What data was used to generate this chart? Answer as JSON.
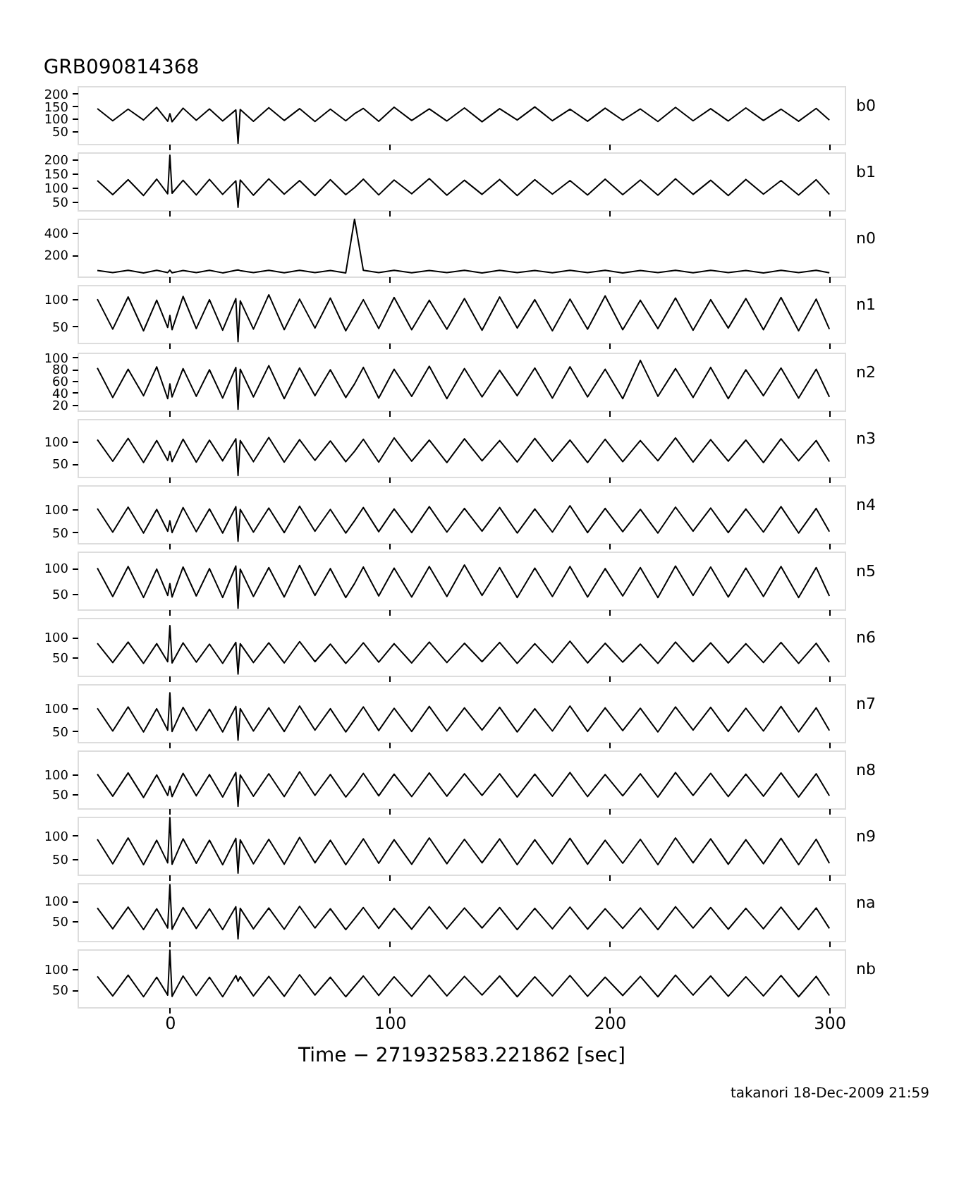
{
  "chart_data": [
    {
      "type": "line",
      "title": "GRB090814368",
      "tick_labels": "y",
      "xlim": [
        -42,
        307
      ],
      "xticks": [
        0,
        100,
        200,
        300
      ],
      "ylim": [
        0,
        230
      ],
      "yticks": [
        50,
        100,
        150,
        200
      ],
      "x": [
        -33,
        -26,
        -19,
        -12,
        -6,
        -1,
        0,
        1,
        6,
        12,
        18,
        24,
        30,
        31,
        32,
        38,
        45,
        52,
        59,
        66,
        73,
        80,
        84,
        88,
        95,
        102,
        110,
        118,
        126,
        134,
        142,
        150,
        158,
        166,
        174,
        182,
        190,
        198,
        206,
        214,
        222,
        230,
        238,
        246,
        254,
        262,
        270,
        278,
        286,
        294,
        300
      ],
      "series": [
        {
          "name": "b0",
          "color": "#000000",
          "values": [
            140,
            92,
            138,
            95,
            145,
            90,
            120,
            88,
            142,
            94,
            139,
            91,
            135,
            2,
            137,
            90,
            144,
            93,
            140,
            89,
            138,
            92,
            120,
            141,
            90,
            146,
            93,
            139,
            91,
            143,
            88,
            140,
            95,
            147,
            92,
            138,
            90,
            142,
            94,
            139,
            89,
            145,
            92,
            140,
            91,
            143,
            93,
            138,
            90,
            141,
            95
          ]
        }
      ]
    },
    {
      "type": "line",
      "tick_labels": "y",
      "xlim": [
        -42,
        307
      ],
      "xticks": [
        0,
        100,
        200,
        300
      ],
      "ylim": [
        20,
        225
      ],
      "yticks": [
        50,
        100,
        150,
        200
      ],
      "x": [
        -33,
        -26,
        -19,
        -12,
        -6,
        -1,
        0,
        1,
        6,
        12,
        18,
        24,
        30,
        31,
        32,
        38,
        45,
        52,
        59,
        66,
        73,
        80,
        84,
        88,
        95,
        102,
        110,
        118,
        126,
        134,
        142,
        150,
        158,
        166,
        174,
        182,
        190,
        198,
        206,
        214,
        222,
        230,
        238,
        246,
        254,
        262,
        270,
        278,
        286,
        294,
        300
      ],
      "series": [
        {
          "name": "b1",
          "color": "#000000",
          "values": [
            125,
            75,
            128,
            72,
            130,
            78,
            215,
            80,
            126,
            74,
            129,
            76,
            124,
            30,
            127,
            73,
            131,
            77,
            125,
            72,
            128,
            75,
            100,
            130,
            74,
            127,
            78,
            132,
            73,
            126,
            76,
            129,
            72,
            128,
            77,
            125,
            74,
            130,
            75,
            127,
            73,
            131,
            76,
            126,
            72,
            129,
            77,
            125,
            74,
            128,
            76
          ]
        }
      ]
    },
    {
      "type": "line",
      "tick_labels": "y",
      "xlim": [
        -42,
        307
      ],
      "xticks": [
        0,
        100,
        200,
        300
      ],
      "ylim": [
        0,
        530
      ],
      "yticks": [
        200,
        400
      ],
      "x": [
        -33,
        -26,
        -19,
        -12,
        -6,
        -1,
        0,
        1,
        6,
        12,
        18,
        24,
        30,
        31,
        32,
        38,
        45,
        52,
        59,
        66,
        73,
        80,
        84,
        88,
        95,
        102,
        110,
        118,
        126,
        134,
        142,
        150,
        158,
        166,
        174,
        182,
        190,
        198,
        206,
        214,
        222,
        230,
        238,
        246,
        254,
        262,
        270,
        278,
        286,
        294,
        300
      ],
      "series": [
        {
          "name": "n0",
          "color": "#000000",
          "values": [
            55,
            35,
            57,
            33,
            56,
            36,
            58,
            34,
            55,
            35,
            57,
            33,
            56,
            60,
            54,
            36,
            57,
            34,
            56,
            35,
            55,
            33,
            525,
            56,
            35,
            57,
            34,
            55,
            36,
            56,
            33,
            57,
            35,
            55,
            34,
            56,
            36,
            57,
            33,
            55,
            35,
            56,
            34,
            57,
            36,
            55,
            33,
            56,
            35,
            57,
            34
          ]
        }
      ]
    },
    {
      "type": "line",
      "tick_labels": "y",
      "xlim": [
        -42,
        307
      ],
      "xticks": [
        0,
        100,
        200,
        300
      ],
      "ylim": [
        20,
        126
      ],
      "yticks": [
        50,
        100
      ],
      "x": [
        -33,
        -26,
        -19,
        -12,
        -6,
        -1,
        0,
        1,
        6,
        12,
        18,
        24,
        30,
        31,
        32,
        38,
        45,
        52,
        59,
        66,
        73,
        80,
        84,
        88,
        95,
        102,
        110,
        118,
        126,
        134,
        142,
        150,
        158,
        166,
        174,
        182,
        190,
        198,
        206,
        214,
        222,
        230,
        238,
        246,
        254,
        262,
        270,
        278,
        286,
        294,
        300
      ],
      "series": [
        {
          "name": "n1",
          "color": "#000000",
          "values": [
            100,
            45,
            104,
            42,
            98,
            48,
            70,
            44,
            105,
            46,
            99,
            43,
            101,
            22,
            97,
            45,
            108,
            44,
            100,
            47,
            102,
            42,
            70,
            99,
            46,
            103,
            44,
            98,
            45,
            101,
            43,
            104,
            47,
            99,
            42,
            100,
            45,
            106,
            44,
            98,
            46,
            102,
            43,
            99,
            47,
            101,
            44,
            103,
            42,
            100,
            45
          ]
        }
      ]
    },
    {
      "type": "line",
      "tick_labels": "y",
      "xlim": [
        -42,
        307
      ],
      "xticks": [
        0,
        100,
        200,
        300
      ],
      "ylim": [
        10,
        108
      ],
      "yticks": [
        20,
        40,
        60,
        80,
        100
      ],
      "x": [
        -33,
        -26,
        -19,
        -12,
        -6,
        -1,
        0,
        1,
        6,
        12,
        18,
        24,
        30,
        31,
        32,
        38,
        45,
        52,
        59,
        66,
        73,
        80,
        84,
        88,
        95,
        102,
        110,
        118,
        126,
        134,
        142,
        150,
        158,
        166,
        174,
        182,
        190,
        198,
        206,
        214,
        222,
        230,
        238,
        246,
        254,
        262,
        270,
        278,
        286,
        294,
        300
      ],
      "series": [
        {
          "name": "n2",
          "color": "#000000",
          "values": [
            82,
            32,
            80,
            35,
            84,
            30,
            55,
            33,
            81,
            34,
            79,
            31,
            83,
            12,
            80,
            33,
            86,
            30,
            82,
            35,
            79,
            32,
            55,
            83,
            31,
            80,
            34,
            85,
            30,
            81,
            33,
            78,
            35,
            82,
            31,
            84,
            33,
            80,
            30,
            95,
            34,
            81,
            32,
            83,
            30,
            79,
            35,
            82,
            31,
            80,
            33
          ]
        }
      ]
    },
    {
      "type": "line",
      "tick_labels": "y",
      "xlim": [
        -42,
        307
      ],
      "xticks": [
        0,
        100,
        200,
        300
      ],
      "ylim": [
        19,
        153
      ],
      "yticks": [
        50,
        100
      ],
      "x": [
        -33,
        -26,
        -19,
        -12,
        -6,
        -1,
        0,
        1,
        6,
        12,
        18,
        24,
        30,
        31,
        32,
        38,
        45,
        52,
        59,
        66,
        73,
        80,
        84,
        88,
        95,
        102,
        110,
        118,
        126,
        134,
        142,
        150,
        158,
        166,
        174,
        182,
        190,
        198,
        206,
        214,
        222,
        230,
        238,
        246,
        254,
        262,
        270,
        278,
        286,
        294,
        300
      ],
      "series": [
        {
          "name": "n3",
          "color": "#000000",
          "values": [
            105,
            55,
            108,
            52,
            103,
            57,
            78,
            54,
            106,
            53,
            104,
            56,
            107,
            22,
            103,
            54,
            110,
            53,
            105,
            57,
            102,
            54,
            78,
            106,
            53,
            109,
            55,
            104,
            52,
            107,
            56,
            103,
            53,
            108,
            55,
            104,
            52,
            106,
            54,
            103,
            56,
            109,
            53,
            105,
            55,
            104,
            52,
            107,
            56,
            103,
            54
          ]
        }
      ]
    },
    {
      "type": "line",
      "tick_labels": "y",
      "xlim": [
        -42,
        307
      ],
      "xticks": [
        0,
        100,
        200,
        300
      ],
      "ylim": [
        26,
        153
      ],
      "yticks": [
        50,
        100
      ],
      "x": [
        -33,
        -26,
        -19,
        -12,
        -6,
        -1,
        0,
        1,
        6,
        12,
        18,
        24,
        30,
        31,
        32,
        38,
        45,
        52,
        59,
        66,
        73,
        80,
        84,
        88,
        95,
        102,
        110,
        118,
        126,
        134,
        142,
        150,
        158,
        166,
        174,
        182,
        190,
        198,
        206,
        214,
        222,
        230,
        238,
        246,
        254,
        262,
        270,
        278,
        286,
        294,
        300
      ],
      "series": [
        {
          "name": "n4",
          "color": "#000000",
          "values": [
            102,
            50,
            105,
            48,
            100,
            52,
            75,
            49,
            104,
            51,
            101,
            48,
            106,
            30,
            100,
            50,
            103,
            49,
            107,
            52,
            100,
            48,
            75,
            104,
            51,
            101,
            49,
            106,
            50,
            102,
            52,
            104,
            48,
            101,
            50,
            108,
            49,
            102,
            51,
            100,
            48,
            105,
            52,
            103,
            49,
            101,
            50,
            106,
            48,
            102,
            51
          ]
        }
      ]
    },
    {
      "type": "line",
      "tick_labels": "y",
      "xlim": [
        -42,
        307
      ],
      "xticks": [
        0,
        100,
        200,
        300
      ],
      "ylim": [
        20,
        132
      ],
      "yticks": [
        50,
        100
      ],
      "x": [
        -33,
        -26,
        -19,
        -12,
        -6,
        -1,
        0,
        1,
        6,
        12,
        18,
        24,
        30,
        31,
        32,
        38,
        45,
        52,
        59,
        66,
        73,
        80,
        84,
        88,
        95,
        102,
        110,
        118,
        126,
        134,
        142,
        150,
        158,
        166,
        174,
        182,
        190,
        198,
        206,
        214,
        222,
        230,
        238,
        246,
        254,
        262,
        270,
        278,
        286,
        294,
        300
      ],
      "series": [
        {
          "name": "n5",
          "color": "#000000",
          "values": [
            100,
            45,
            103,
            43,
            98,
            47,
            70,
            44,
            102,
            46,
            99,
            43,
            104,
            22,
            98,
            45,
            101,
            44,
            105,
            47,
            99,
            43,
            70,
            102,
            46,
            100,
            44,
            103,
            45,
            106,
            47,
            101,
            43,
            100,
            45,
            103,
            44,
            99,
            46,
            101,
            43,
            104,
            47,
            102,
            44,
            100,
            45,
            103,
            43,
            101,
            46
          ]
        }
      ]
    },
    {
      "type": "line",
      "tick_labels": "y",
      "xlim": [
        -42,
        307
      ],
      "xticks": [
        0,
        100,
        200,
        300
      ],
      "ylim": [
        6,
        147
      ],
      "yticks": [
        50,
        100
      ],
      "x": [
        -33,
        -26,
        -19,
        -12,
        -6,
        -1,
        0,
        1,
        6,
        12,
        18,
        24,
        30,
        31,
        32,
        38,
        45,
        52,
        59,
        66,
        73,
        80,
        84,
        88,
        95,
        102,
        110,
        118,
        126,
        134,
        142,
        150,
        158,
        166,
        174,
        182,
        190,
        198,
        206,
        214,
        222,
        230,
        238,
        246,
        254,
        262,
        270,
        278,
        286,
        294,
        300
      ],
      "series": [
        {
          "name": "n6",
          "color": "#000000",
          "values": [
            85,
            38,
            88,
            36,
            84,
            40,
            128,
            37,
            86,
            39,
            83,
            36,
            87,
            10,
            84,
            38,
            86,
            37,
            89,
            40,
            83,
            36,
            60,
            86,
            39,
            84,
            37,
            88,
            38,
            85,
            40,
            87,
            36,
            84,
            38,
            90,
            37,
            85,
            39,
            83,
            36,
            88,
            40,
            86,
            37,
            84,
            38,
            87,
            36,
            85,
            39
          ]
        }
      ]
    },
    {
      "type": "line",
      "tick_labels": "y",
      "xlim": [
        -42,
        307
      ],
      "xticks": [
        0,
        100,
        200,
        300
      ],
      "ylim": [
        26,
        153
      ],
      "yticks": [
        50,
        100
      ],
      "x": [
        -33,
        -26,
        -19,
        -12,
        -6,
        -1,
        0,
        1,
        6,
        12,
        18,
        24,
        30,
        31,
        32,
        38,
        45,
        52,
        59,
        66,
        73,
        80,
        84,
        88,
        95,
        102,
        110,
        118,
        126,
        134,
        142,
        150,
        158,
        166,
        174,
        182,
        190,
        198,
        206,
        214,
        222,
        230,
        238,
        246,
        254,
        262,
        270,
        278,
        286,
        294,
        300
      ],
      "series": [
        {
          "name": "n7",
          "color": "#000000",
          "values": [
            100,
            50,
            103,
            48,
            99,
            52,
            134,
            49,
            102,
            51,
            98,
            48,
            104,
            30,
            99,
            50,
            101,
            49,
            105,
            52,
            99,
            48,
            75,
            103,
            51,
            100,
            49,
            104,
            50,
            101,
            52,
            102,
            48,
            99,
            50,
            105,
            49,
            101,
            51,
            100,
            48,
            103,
            52,
            102,
            49,
            100,
            50,
            104,
            48,
            101,
            51
          ]
        }
      ]
    },
    {
      "type": "line",
      "tick_labels": "y",
      "xlim": [
        -42,
        307
      ],
      "xticks": [
        0,
        100,
        200,
        300
      ],
      "ylim": [
        15,
        159
      ],
      "yticks": [
        50,
        100
      ],
      "x": [
        -33,
        -26,
        -19,
        -12,
        -6,
        -1,
        0,
        1,
        6,
        12,
        18,
        24,
        30,
        31,
        32,
        38,
        45,
        52,
        59,
        66,
        73,
        80,
        84,
        88,
        95,
        102,
        110,
        118,
        126,
        134,
        142,
        150,
        158,
        166,
        174,
        182,
        190,
        198,
        206,
        214,
        222,
        230,
        238,
        246,
        254,
        262,
        270,
        278,
        286,
        294,
        300
      ],
      "series": [
        {
          "name": "n8",
          "color": "#000000",
          "values": [
            100,
            45,
            103,
            42,
            98,
            47,
            70,
            44,
            102,
            46,
            99,
            43,
            104,
            20,
            98,
            45,
            101,
            44,
            106,
            47,
            99,
            43,
            70,
            102,
            46,
            100,
            44,
            103,
            45,
            101,
            47,
            101,
            43,
            100,
            45,
            104,
            44,
            99,
            46,
            101,
            43,
            104,
            47,
            102,
            44,
            100,
            45,
            103,
            43,
            101,
            46
          ]
        }
      ]
    },
    {
      "type": "line",
      "tick_labels": "y",
      "xlim": [
        -42,
        307
      ],
      "xticks": [
        0,
        100,
        200,
        300
      ],
      "ylim": [
        17,
        140
      ],
      "yticks": [
        50,
        100
      ],
      "x": [
        -33,
        -26,
        -19,
        -12,
        -6,
        -1,
        0,
        1,
        6,
        12,
        18,
        24,
        30,
        31,
        32,
        38,
        45,
        52,
        59,
        66,
        73,
        80,
        84,
        88,
        95,
        102,
        110,
        118,
        126,
        134,
        142,
        150,
        158,
        166,
        174,
        182,
        190,
        198,
        206,
        214,
        222,
        230,
        238,
        246,
        254,
        262,
        270,
        278,
        286,
        294,
        300
      ],
      "series": [
        {
          "name": "n9",
          "color": "#000000",
          "values": [
            92,
            40,
            95,
            38,
            90,
            42,
            138,
            39,
            93,
            41,
            90,
            38,
            94,
            20,
            91,
            40,
            92,
            39,
            96,
            42,
            90,
            38,
            65,
            93,
            41,
            91,
            39,
            95,
            40,
            92,
            42,
            93,
            38,
            91,
            40,
            94,
            39,
            90,
            41,
            92,
            38,
            95,
            42,
            93,
            39,
            91,
            40,
            94,
            38,
            92,
            41
          ]
        }
      ]
    },
    {
      "type": "line",
      "tick_labels": "y",
      "xlim": [
        -42,
        307
      ],
      "xticks": [
        0,
        100,
        200,
        300
      ],
      "ylim": [
        0,
        144
      ],
      "yticks": [
        50,
        100
      ],
      "x": [
        -33,
        -26,
        -19,
        -12,
        -6,
        -1,
        0,
        1,
        6,
        12,
        18,
        24,
        30,
        31,
        32,
        38,
        45,
        52,
        59,
        66,
        73,
        80,
        84,
        88,
        95,
        102,
        110,
        118,
        126,
        134,
        142,
        150,
        158,
        166,
        174,
        182,
        190,
        198,
        206,
        214,
        222,
        230,
        238,
        246,
        254,
        262,
        270,
        278,
        286,
        294,
        300
      ],
      "series": [
        {
          "name": "na",
          "color": "#000000",
          "values": [
            82,
            30,
            84,
            28,
            80,
            32,
            140,
            29,
            83,
            31,
            80,
            28,
            85,
            5,
            81,
            30,
            82,
            29,
            86,
            32,
            80,
            28,
            55,
            83,
            31,
            81,
            29,
            85,
            30,
            82,
            32,
            83,
            28,
            81,
            30,
            84,
            29,
            80,
            31,
            82,
            28,
            85,
            32,
            83,
            29,
            81,
            30,
            84,
            28,
            82,
            31
          ]
        }
      ]
    },
    {
      "type": "line",
      "xlabel": "Time − 271932583.221862 [sec]",
      "annotations": [
        "takanori 18-Dec-2009 21:59"
      ],
      "xlim": [
        -42,
        307
      ],
      "xticks": [
        0,
        100,
        200,
        300
      ],
      "ylim": [
        8,
        147
      ],
      "yticks": [
        50,
        100
      ],
      "x": [
        -33,
        -26,
        -19,
        -12,
        -6,
        -1,
        0,
        1,
        6,
        12,
        18,
        24,
        30,
        31,
        32,
        38,
        45,
        52,
        59,
        66,
        73,
        80,
        84,
        88,
        95,
        102,
        110,
        118,
        126,
        134,
        142,
        150,
        158,
        166,
        174,
        182,
        190,
        198,
        206,
        214,
        222,
        230,
        238,
        246,
        254,
        262,
        270,
        278,
        286,
        294,
        300
      ],
      "series": [
        {
          "name": "nb",
          "color": "#000000",
          "values": [
            82,
            35,
            85,
            33,
            80,
            37,
            145,
            34,
            83,
            36,
            80,
            33,
            84,
            70,
            81,
            35,
            82,
            34,
            86,
            37,
            80,
            33,
            58,
            83,
            36,
            81,
            34,
            85,
            35,
            82,
            37,
            83,
            33,
            81,
            35,
            84,
            34,
            80,
            36,
            82,
            33,
            85,
            37,
            83,
            34,
            81,
            35,
            84,
            33,
            82,
            36
          ]
        }
      ]
    }
  ]
}
